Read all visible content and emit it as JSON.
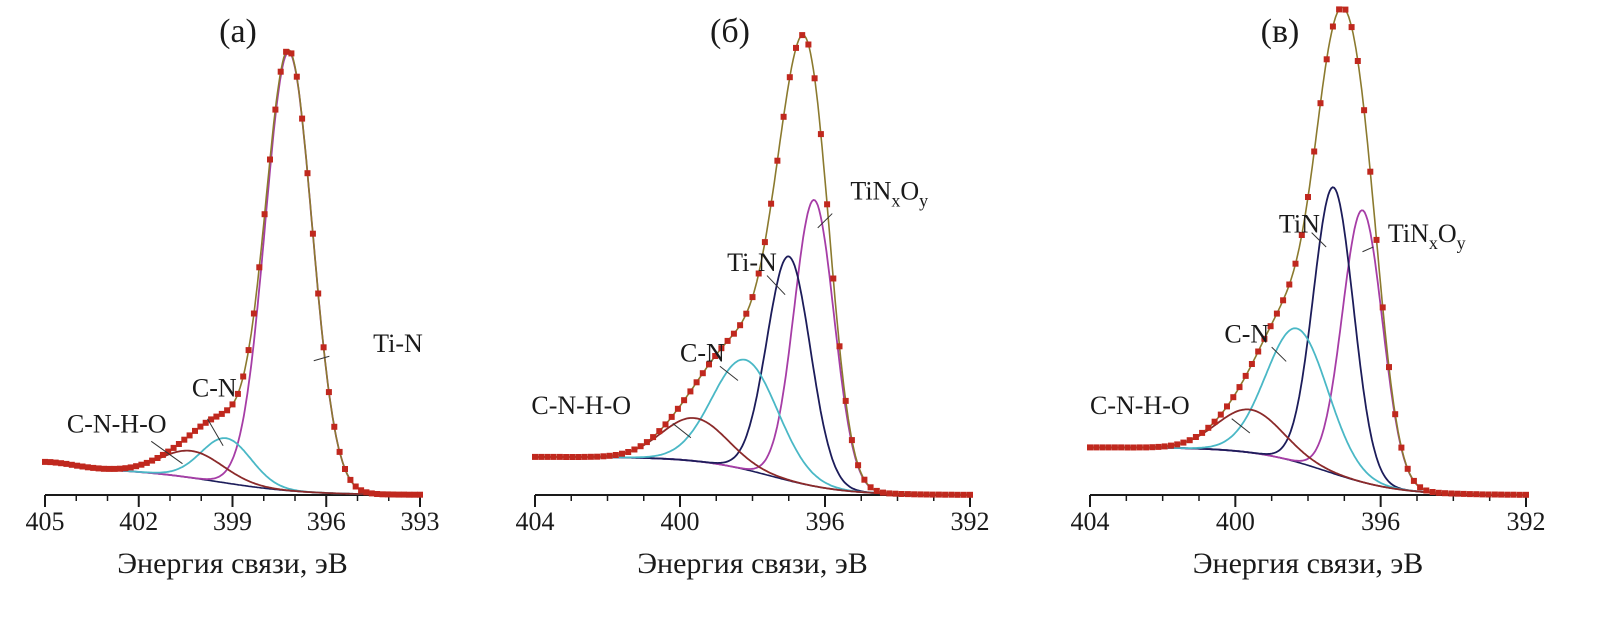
{
  "figure": {
    "colors": {
      "envelope": "#8b7a2e",
      "markers": "#c0281e",
      "tin": "#1c1c5a",
      "tinxoy": "#a63da6",
      "cn": "#4ab8c6",
      "cnho": "#8b2a2a",
      "background": "#1c1c5a",
      "axis": "#1a1a1a"
    }
  },
  "chart_data": [
    {
      "panel_label": "(а)",
      "type": "line",
      "xlabel": "Энергия связи, эВ",
      "ylabel": "",
      "x_reversed": true,
      "xlim": [
        405,
        393
      ],
      "ylim": [
        0,
        1.05
      ],
      "ticks": [
        405,
        402,
        399,
        396,
        393
      ],
      "tick_labels": [
        "405",
        "402",
        "399",
        "396",
        "393"
      ],
      "baseline": {
        "left": 0.06,
        "right": 0.0,
        "mid": 399.5,
        "width": 1.4
      },
      "edge_bump": {
        "center": 405.0,
        "amp": 0.015,
        "sigma": 0.9
      },
      "components": [
        {
          "name": "Ti-N",
          "center": 397.2,
          "amp": 0.98,
          "sigma": 0.75,
          "color_key": "tinxoy"
        },
        {
          "name": "C-N",
          "center": 399.2,
          "amp": 0.1,
          "sigma": 0.8,
          "color_key": "cn"
        },
        {
          "name": "C-N-H-O",
          "center": 400.3,
          "amp": 0.06,
          "sigma": 1.0,
          "color_key": "cnho"
        }
      ],
      "annotations": [
        {
          "text": "Ti-N",
          "sub": "",
          "tail": "",
          "x": 394.5,
          "y": 0.32,
          "lx1": 395.9,
          "ly1": 0.31,
          "lx2": 396.4,
          "ly2": 0.3
        },
        {
          "text": "C-N",
          "sub": "",
          "tail": "",
          "x": 400.3,
          "y": 0.22,
          "lx1": 399.8,
          "ly1": 0.17,
          "lx2": 399.3,
          "ly2": 0.11
        },
        {
          "text": "C-N-H-O",
          "sub": "",
          "tail": "",
          "x": 404.3,
          "y": 0.14,
          "lx1": 401.6,
          "ly1": 0.12,
          "lx2": 400.6,
          "ly2": 0.07
        }
      ]
    },
    {
      "panel_label": "(б)",
      "type": "line",
      "xlabel": "Энергия связи, эВ",
      "ylabel": "",
      "x_reversed": true,
      "xlim": [
        404,
        392
      ],
      "ylim": [
        0,
        1.0
      ],
      "ticks": [
        404,
        400,
        396,
        392
      ],
      "tick_labels": [
        "404",
        "400",
        "396",
        "392"
      ],
      "baseline": {
        "left": 0.08,
        "right": 0.0,
        "mid": 397.5,
        "width": 1.0
      },
      "edge_bump": {
        "center": 404,
        "amp": 0.0,
        "sigma": 1.0
      },
      "components": [
        {
          "name": "TiNxOy",
          "center": 396.3,
          "amp": 0.6,
          "sigma": 0.55,
          "color_key": "tinxoy"
        },
        {
          "name": "Ti-N",
          "center": 397.0,
          "amp": 0.47,
          "sigma": 0.6,
          "color_key": "tin"
        },
        {
          "name": "C-N",
          "center": 398.2,
          "amp": 0.23,
          "sigma": 0.9,
          "color_key": "cn"
        },
        {
          "name": "C-N-H-O",
          "center": 399.6,
          "amp": 0.09,
          "sigma": 0.9,
          "color_key": "cnho"
        }
      ],
      "annotations": [
        {
          "text": "TiN",
          "sub": "x",
          "tail": "O",
          "sub2": "y",
          "x": 395.3,
          "y": 0.62,
          "lx1": 395.8,
          "ly1": 0.59,
          "lx2": 396.2,
          "ly2": 0.56
        },
        {
          "text": "Ti-N",
          "sub": "",
          "tail": "",
          "x": 398.7,
          "y": 0.47,
          "lx1": 397.6,
          "ly1": 0.46,
          "lx2": 397.1,
          "ly2": 0.42
        },
        {
          "text": "C-N",
          "sub": "",
          "tail": "",
          "x": 400.0,
          "y": 0.28,
          "lx1": 398.9,
          "ly1": 0.27,
          "lx2": 398.4,
          "ly2": 0.24
        },
        {
          "text": "C-N-H-O",
          "sub": "",
          "tail": "",
          "x": 404.1,
          "y": 0.17,
          "lx1": 400.2,
          "ly1": 0.15,
          "lx2": 399.7,
          "ly2": 0.12
        }
      ]
    },
    {
      "panel_label": "(в)",
      "type": "line",
      "xlabel": "Энергия связи, эВ",
      "ylabel": "",
      "x_reversed": true,
      "xlim": [
        404,
        392
      ],
      "ylim": [
        0,
        1.0
      ],
      "ticks": [
        404,
        400,
        396,
        392
      ],
      "tick_labels": [
        "404",
        "400",
        "396",
        "392"
      ],
      "baseline": {
        "left": 0.1,
        "right": 0.0,
        "mid": 397.5,
        "width": 1.0
      },
      "edge_bump": {
        "center": 404,
        "amp": 0.0,
        "sigma": 1.0
      },
      "components": [
        {
          "name": "TiNxOy",
          "center": 396.5,
          "amp": 0.57,
          "sigma": 0.55,
          "color_key": "tinxoy"
        },
        {
          "name": "TiN",
          "center": 397.3,
          "amp": 0.6,
          "sigma": 0.55,
          "color_key": "tin"
        },
        {
          "name": "C-N",
          "center": 398.3,
          "amp": 0.28,
          "sigma": 0.85,
          "color_key": "cn"
        },
        {
          "name": "C-N-H-O",
          "center": 399.6,
          "amp": 0.09,
          "sigma": 0.9,
          "color_key": "cnho"
        }
      ],
      "annotations": [
        {
          "text": "TiN",
          "sub": "x",
          "tail": "O",
          "sub2": "y",
          "x": 395.8,
          "y": 0.53,
          "lx1": 396.2,
          "ly1": 0.52,
          "lx2": 396.5,
          "ly2": 0.51
        },
        {
          "text": "TiN",
          "sub": "",
          "tail": "",
          "x": 398.8,
          "y": 0.55,
          "lx1": 397.9,
          "ly1": 0.55,
          "lx2": 397.5,
          "ly2": 0.52
        },
        {
          "text": "C-N",
          "sub": "",
          "tail": "",
          "x": 400.3,
          "y": 0.32,
          "lx1": 399.0,
          "ly1": 0.31,
          "lx2": 398.6,
          "ly2": 0.28
        },
        {
          "text": "C-N-H-O",
          "sub": "",
          "tail": "",
          "x": 404.0,
          "y": 0.17,
          "lx1": 400.1,
          "ly1": 0.16,
          "lx2": 399.6,
          "ly2": 0.13
        }
      ]
    }
  ]
}
